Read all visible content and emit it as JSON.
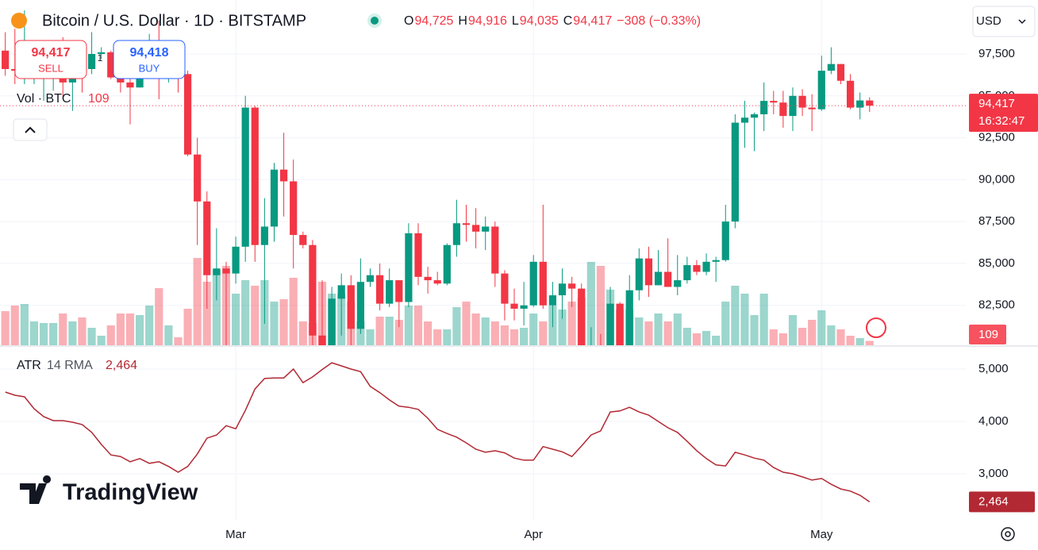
{
  "chart_data": [
    {
      "type": "candlestick",
      "title": "Bitcoin / U.S. Dollar · 1D · BITSTAMP",
      "ohlc_labels": [
        {
          "key": "O",
          "value": "94,725"
        },
        {
          "key": "H",
          "value": "94,916"
        },
        {
          "key": "L",
          "value": "94,035"
        },
        {
          "key": "C",
          "value": "94,417"
        }
      ],
      "change_label": "−308 (−0.33%)",
      "up_color": "#089981",
      "down_color": "#f23645",
      "open": [
        97700,
        96600,
        96500,
        96500,
        96500,
        96500,
        97400,
        95800,
        97800,
        96600,
        97500,
        97600,
        96100,
        95800,
        95500,
        96600,
        98300,
        96100,
        96600,
        96300,
        91500,
        88700,
        84300,
        84700,
        84400,
        86000,
        94300,
        86100,
        87200,
        90600,
        89900,
        86700,
        86100,
        80700,
        78600,
        82900,
        83700,
        81100,
        83900,
        84300,
        82600,
        84000,
        82700,
        86800,
        84200,
        84000,
        83800,
        86100,
        87400,
        87300,
        86900,
        87200,
        84400,
        82600,
        82300,
        82500,
        85100,
        82500,
        83100,
        83800,
        83500,
        78200,
        79100,
        76300,
        82600,
        79600,
        83400,
        85300,
        83700,
        84500,
        83600,
        84000,
        84900,
        84500,
        85100,
        85200,
        87500,
        93400,
        93700,
        93900,
        94700,
        94600,
        93800,
        95000,
        94300,
        94200,
        96500,
        96900,
        95900,
        94300,
        94725
      ],
      "high": [
        98800,
        99000,
        100100,
        96900,
        97300,
        98300,
        98500,
        98100,
        98100,
        98800,
        97900,
        97700,
        97000,
        96700,
        96900,
        98700,
        99500,
        96900,
        96700,
        96500,
        92500,
        89300,
        87100,
        85100,
        86600,
        95000,
        94400,
        88900,
        91000,
        92800,
        91200,
        86900,
        86400,
        84000,
        83600,
        84400,
        84300,
        85300,
        84700,
        85000,
        84700,
        84000,
        87400,
        87400,
        84800,
        84500,
        86200,
        88800,
        88500,
        88300,
        87800,
        87500,
        84600,
        83500,
        83900,
        85500,
        88500,
        83900,
        84700,
        84200,
        83800,
        81200,
        80800,
        83600,
        82700,
        84300,
        85900,
        86000,
        85800,
        86500,
        85500,
        85400,
        85200,
        85600,
        85400,
        88500,
        93900,
        94700,
        94000,
        95800,
        95300,
        95300,
        95500,
        95400,
        95100,
        97400,
        97900,
        96900,
        96300,
        95200,
        94916
      ],
      "low": [
        96200,
        95700,
        95700,
        95700,
        94700,
        95300,
        94900,
        94100,
        95200,
        96300,
        97200,
        96000,
        95200,
        93300,
        95500,
        96400,
        94800,
        95800,
        95200,
        91400,
        86100,
        82300,
        82800,
        78200,
        83800,
        85100,
        85100,
        81400,
        86300,
        87800,
        84700,
        85900,
        80100,
        77500,
        76600,
        80700,
        79900,
        80800,
        83600,
        82200,
        82400,
        81200,
        82400,
        83700,
        83200,
        83700,
        83700,
        85400,
        86300,
        85900,
        85800,
        83600,
        81600,
        81600,
        81300,
        82400,
        82300,
        81200,
        81700,
        82400,
        77200,
        74500,
        76200,
        74600,
        78500,
        78900,
        82800,
        83000,
        83700,
        83600,
        83100,
        83800,
        84300,
        84300,
        83900,
        85100,
        87100,
        91900,
        91700,
        92900,
        93900,
        93100,
        92900,
        93800,
        92900,
        94100,
        96300,
        95700,
        94200,
        93600,
        94035
      ],
      "close": [
        96600,
        96500,
        96500,
        96500,
        96500,
        97400,
        95800,
        97800,
        96600,
        97500,
        97600,
        96100,
        95800,
        95500,
        96600,
        98300,
        96100,
        96600,
        96300,
        91500,
        88700,
        84300,
        84700,
        84400,
        86000,
        94300,
        86100,
        87200,
        90600,
        89900,
        86700,
        86100,
        80700,
        78600,
        82900,
        83700,
        81100,
        83900,
        84300,
        82600,
        84000,
        82700,
        86800,
        84200,
        84000,
        83800,
        86100,
        87400,
        87300,
        86900,
        87200,
        84400,
        82600,
        82300,
        82500,
        85100,
        82500,
        83100,
        83800,
        83500,
        78200,
        79100,
        76300,
        82600,
        79600,
        83400,
        85300,
        83700,
        84500,
        83600,
        84000,
        84900,
        84500,
        85100,
        85200,
        87500,
        93400,
        93700,
        93900,
        94700,
        94600,
        93800,
        95000,
        94300,
        94200,
        96500,
        96900,
        95900,
        94300,
        94725,
        94417
      ],
      "volume_label": "Vol · BTC",
      "volume": [
        860,
        1000,
        1040,
        600,
        560,
        560,
        800,
        600,
        700,
        440,
        240,
        500,
        800,
        800,
        760,
        1000,
        1440,
        500,
        200,
        920,
        2200,
        1600,
        1900,
        2000,
        1300,
        1640,
        1500,
        1640,
        1100,
        1160,
        1700,
        600,
        560,
        1600,
        1300,
        1300,
        1100,
        600,
        400,
        720,
        720,
        640,
        1000,
        1000,
        600,
        400,
        400,
        960,
        1100,
        800,
        700,
        600,
        500,
        400,
        440,
        800,
        600,
        1000,
        900,
        1100,
        1200,
        2100,
        2000,
        1400,
        900,
        900,
        700,
        600,
        800,
        600,
        800,
        440,
        300,
        360,
        240,
        1100,
        1500,
        1300,
        760,
        1300,
        400,
        300,
        760,
        440,
        640,
        880,
        500,
        400,
        240,
        180,
        109
      ],
      "last_price": {
        "value": 94417,
        "label": "94,417"
      },
      "ylim": [
        80120,
        100720
      ],
      "yticks": [
        {
          "value": 97500,
          "label": "97,500"
        },
        {
          "value": 95000,
          "label": "95,000"
        },
        {
          "value": 92500,
          "label": "92,500"
        },
        {
          "value": 90000,
          "label": "90,000"
        },
        {
          "value": 87500,
          "label": "87,500"
        },
        {
          "value": 85000,
          "label": "85,000"
        },
        {
          "value": 82500,
          "label": "82,500"
        }
      ],
      "xlim": [
        -0.55,
        100.1
      ],
      "grid": true
    },
    {
      "type": "line",
      "name": "ATR",
      "params": "14 RMA",
      "color": "#b22833",
      "values": [
        4560,
        4500,
        4470,
        4240,
        4090,
        4015,
        4015,
        3985,
        3940,
        3790,
        3560,
        3360,
        3330,
        3230,
        3290,
        3200,
        3230,
        3140,
        3030,
        3140,
        3380,
        3680,
        3740,
        3920,
        3860,
        4210,
        4620,
        4820,
        4830,
        4830,
        5000,
        4740,
        4850,
        4990,
        5120,
        5060,
        5000,
        4950,
        4670,
        4550,
        4410,
        4290,
        4270,
        4230,
        4060,
        3850,
        3770,
        3700,
        3590,
        3470,
        3410,
        3440,
        3400,
        3300,
        3260,
        3260,
        3520,
        3470,
        3420,
        3330,
        3530,
        3740,
        3820,
        4180,
        4200,
        4270,
        4180,
        4120,
        4000,
        3880,
        3790,
        3620,
        3440,
        3290,
        3170,
        3150,
        3410,
        3360,
        3300,
        3260,
        3120,
        3030,
        3000,
        2940,
        2880,
        2910,
        2800,
        2710,
        2670,
        2590,
        2464
      ],
      "value_label": "2,464",
      "ylim": [
        2121,
        5424
      ],
      "yticks": [
        {
          "value": 5000,
          "label": "5,000"
        },
        {
          "value": 4000,
          "label": "4,000"
        },
        {
          "value": 3000,
          "label": "3,000"
        }
      ],
      "xlim": [
        -0.55,
        100.1
      ],
      "xticks": [
        {
          "value": 24,
          "label": "Mar"
        },
        {
          "value": 55,
          "label": "Apr"
        },
        {
          "value": 85,
          "label": "May"
        }
      ],
      "grid": true
    }
  ],
  "ui": {
    "sell_price": "94,417",
    "sell": "SELL",
    "spread": "1",
    "buy_price": "94,418",
    "buy": "BUY",
    "currency": "USD",
    "countdown": "16:32:47",
    "brand": "TradingView"
  }
}
